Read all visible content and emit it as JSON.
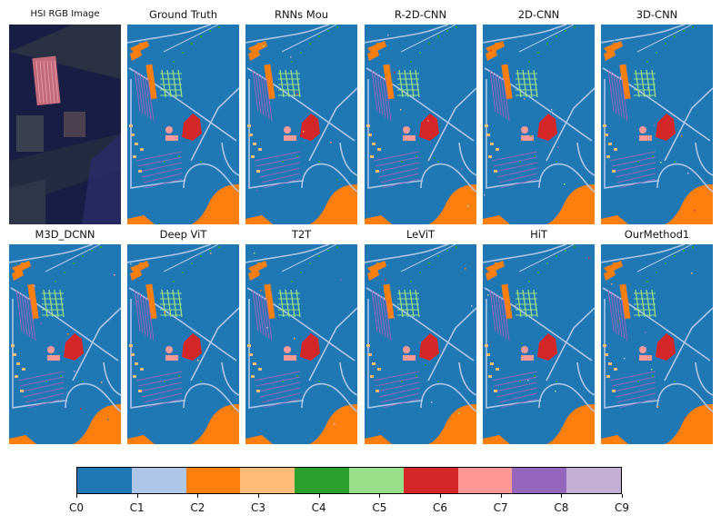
{
  "figure": {
    "panels": [
      {
        "title": "HSI RGB Image",
        "kind": "rgb"
      },
      {
        "title": "Ground Truth",
        "kind": "map"
      },
      {
        "title": "RNNs Mou",
        "kind": "map"
      },
      {
        "title": "R-2D-CNN",
        "kind": "map"
      },
      {
        "title": "2D-CNN",
        "kind": "map"
      },
      {
        "title": "3D-CNN",
        "kind": "map"
      },
      {
        "title": "M3D_DCNN",
        "kind": "map"
      },
      {
        "title": "Deep ViT",
        "kind": "map"
      },
      {
        "title": "T2T",
        "kind": "map"
      },
      {
        "title": "LeViT",
        "kind": "map"
      },
      {
        "title": "HiT",
        "kind": "map"
      },
      {
        "title": "OurMethod1",
        "kind": "map"
      }
    ]
  },
  "colorbar": {
    "labels": [
      "C0",
      "C1",
      "C2",
      "C3",
      "C4",
      "C5",
      "C6",
      "C7",
      "C8",
      "C9"
    ],
    "colors": [
      "#1f77b4",
      "#aec7e8",
      "#ff7f0e",
      "#ffbb78",
      "#2ca02c",
      "#98df8a",
      "#d62728",
      "#ff9896",
      "#9467bd",
      "#c5b0d5"
    ]
  }
}
